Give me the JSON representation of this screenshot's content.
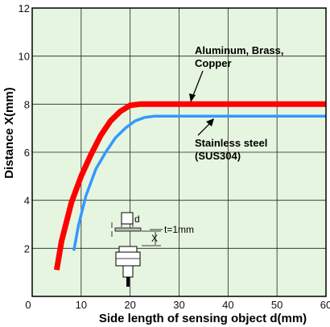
{
  "chart_data": {
    "type": "line",
    "xlabel": "Side length of sensing object d(mm)",
    "ylabel": "Distance X(mm)",
    "xlim": [
      0,
      60
    ],
    "ylim": [
      0,
      12
    ],
    "xticks": [
      0,
      10,
      20,
      30,
      40,
      50,
      60
    ],
    "yticks": [
      2,
      4,
      6,
      8,
      10,
      12
    ],
    "grid": true,
    "background": "#e6f5df",
    "series": [
      {
        "name": "Aluminum, Brass, Copper",
        "color": "#ff0000",
        "x": [
          5,
          6,
          8,
          10,
          12,
          14,
          16,
          18,
          20,
          22,
          26,
          30,
          40,
          50,
          60
        ],
        "y": [
          1.1,
          2.3,
          3.9,
          5.0,
          5.9,
          6.7,
          7.3,
          7.7,
          7.95,
          8.0,
          8.0,
          8.0,
          8.0,
          8.0,
          8.0
        ]
      },
      {
        "name": "Stainless steel (SUS304)",
        "color": "#3399ff",
        "x": [
          8.5,
          9.5,
          11,
          13,
          15,
          17,
          19,
          21,
          23,
          25,
          30,
          40,
          50,
          60
        ],
        "y": [
          1.9,
          3.0,
          4.2,
          5.3,
          6.0,
          6.6,
          7.0,
          7.3,
          7.45,
          7.5,
          7.5,
          7.5,
          7.5,
          7.5
        ]
      }
    ],
    "annotations": {
      "series1_label_line1": "Aluminum, Brass,",
      "series1_label_line2": "Copper",
      "series2_label_line1": "Stainless steel",
      "series2_label_line2": "(SUS304)",
      "thickness": "t=1mm",
      "dim_d": "d",
      "dim_x": "X"
    }
  }
}
